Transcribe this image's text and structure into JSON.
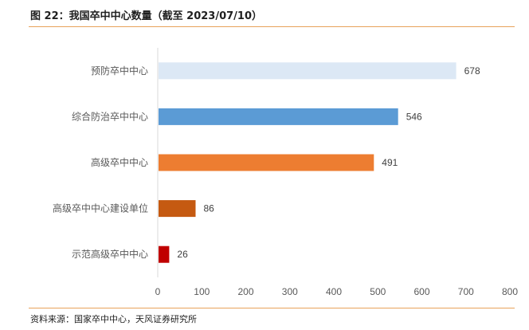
{
  "figure_title": "图 22：我国卒中中心数量（截至 2023/07/10）",
  "source_note": "资料来源：国家卒中中心，天风证券研究所",
  "chart_data": {
    "type": "bar",
    "orientation": "horizontal",
    "categories": [
      "预防卒中中心",
      "综合防治卒中中心",
      "高级卒中中心",
      "高级卒中中心建设单位",
      "示范高级卒中中心"
    ],
    "values": [
      678,
      546,
      491,
      86,
      26
    ],
    "data_labels": [
      "678",
      "546",
      "491",
      "86",
      "26"
    ],
    "colors": [
      "#dce8f5",
      "#5b9bd5",
      "#ed7d31",
      "#c55a11",
      "#c00000"
    ],
    "xlim": [
      0,
      800
    ],
    "xticks": [
      0,
      100,
      200,
      300,
      400,
      500,
      600,
      700,
      800
    ],
    "xtick_labels": [
      "0",
      "100",
      "200",
      "300",
      "400",
      "500",
      "600",
      "700",
      "800"
    ],
    "grid": false,
    "legend": "none"
  }
}
